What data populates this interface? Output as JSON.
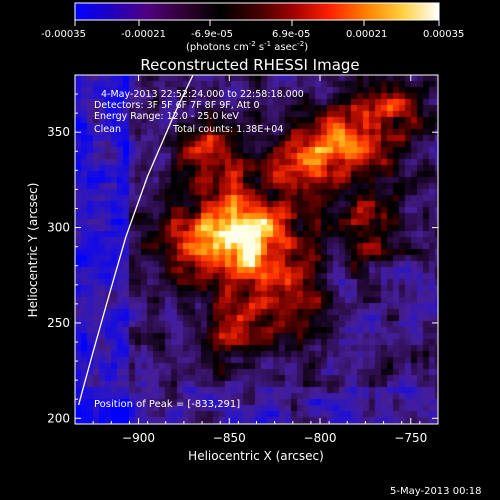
{
  "colorbar": {
    "ticks": [
      "-0.00035",
      "-0.00021",
      "-6.9e-05",
      "6.9e-05",
      "0.00021",
      "0.00035"
    ],
    "units_main": "(photons cm",
    "units_sup1": "-2",
    "units_mid": " s",
    "units_sup2": "-1",
    "units_end": " asec",
    "units_sup3": "-2",
    "units_close": ")",
    "colors": [
      "#0000ff",
      "#2000c0",
      "#500080",
      "#300030",
      "#000000",
      "#400000",
      "#a00000",
      "#ff2000",
      "#ff8000",
      "#ffd040",
      "#ffffff"
    ]
  },
  "annotations": {
    "time_range": "4-May-2013 22:52:24.000 to 22:58:18.000",
    "detectors": "Detectors: 3F 5F 6F 7F 8F 9F, Att 0",
    "energy": "Energy Range: 12.0 - 25.0 keV",
    "clean_label": "Clean",
    "total_counts": "Total counts: 1.38E+04",
    "peak": "Position of Peak = [-833,291]"
  },
  "footer": {
    "timestamp": "5-May-2013 00:18"
  },
  "chart_data": {
    "type": "heatmap",
    "title": "Reconstructed RHESSI Image",
    "xlabel": "Heliocentric X (arcsec)",
    "ylabel": "Heliocentric Y (arcsec)",
    "xlim": [
      -935,
      -735
    ],
    "ylim": [
      197,
      380
    ],
    "xticks": [
      -900,
      -850,
      -800,
      -750
    ],
    "yticks": [
      200,
      250,
      300,
      350
    ],
    "xtick_labels": [
      "−900",
      "−850",
      "−800",
      "−750"
    ],
    "ytick_labels": [
      "200",
      "250",
      "300",
      "350"
    ],
    "peak_position": [
      -833,
      291
    ],
    "limb_curve": [
      [
        -933,
        207
      ],
      [
        -925,
        235
      ],
      [
        -917,
        262
      ],
      [
        -907,
        295
      ],
      [
        -895,
        327
      ],
      [
        -880,
        360
      ],
      [
        -870,
        380
      ]
    ]
  }
}
